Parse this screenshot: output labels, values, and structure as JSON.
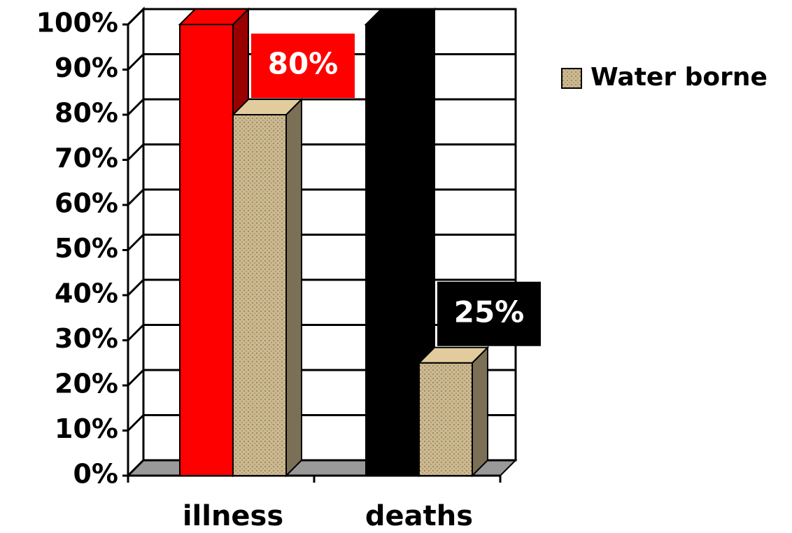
{
  "chart_data": {
    "type": "bar3d",
    "categories": [
      "illness",
      "deaths"
    ],
    "series": [
      {
        "colors": [
          "#ff0000",
          "#000000"
        ],
        "values": [
          100,
          100
        ]
      },
      {
        "name": "Water borne",
        "color": "#cdb98f",
        "values": [
          80,
          25
        ],
        "value_labels": [
          "80%",
          "25%"
        ]
      }
    ],
    "ylim": [
      0,
      100
    ],
    "yticks": [
      {
        "value": 0,
        "label": "0%"
      },
      {
        "value": 10,
        "label": "10%"
      },
      {
        "value": 20,
        "label": "20%"
      },
      {
        "value": 30,
        "label": "30%"
      },
      {
        "value": 40,
        "label": "40%"
      },
      {
        "value": 50,
        "label": "50%"
      },
      {
        "value": 60,
        "label": "60%"
      },
      {
        "value": 70,
        "label": "70%"
      },
      {
        "value": 80,
        "label": "80%"
      },
      {
        "value": 90,
        "label": "90%"
      },
      {
        "value": 100,
        "label": "100%"
      }
    ],
    "grid": true,
    "legend": "right"
  }
}
